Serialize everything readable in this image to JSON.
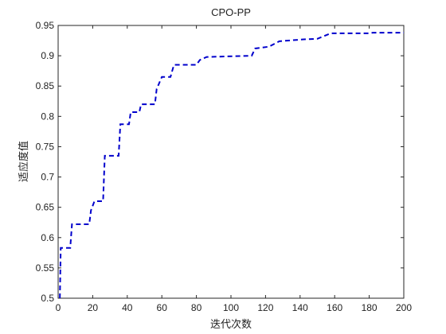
{
  "chart_data": {
    "type": "line",
    "title": "CPO-PP",
    "xlabel": "迭代次数",
    "ylabel": "适应度值",
    "x": [
      1,
      1.5,
      7,
      8,
      18,
      19,
      21,
      26,
      27,
      35,
      36,
      41,
      42,
      47,
      48,
      56,
      57,
      60,
      65,
      67,
      80,
      82,
      86,
      112,
      114,
      122,
      128,
      142,
      150,
      156,
      158,
      180,
      182,
      200
    ],
    "series": [
      {
        "color": "#0000cc",
        "values": [
          0.5,
          0.583,
          0.583,
          0.622,
          0.622,
          0.645,
          0.66,
          0.66,
          0.735,
          0.735,
          0.787,
          0.787,
          0.807,
          0.807,
          0.82,
          0.82,
          0.845,
          0.865,
          0.865,
          0.885,
          0.885,
          0.893,
          0.898,
          0.9,
          0.912,
          0.915,
          0.924,
          0.927,
          0.928,
          0.935,
          0.937,
          0.937,
          0.938,
          0.938
        ]
      }
    ],
    "xlim": [
      0,
      200
    ],
    "xticks": [
      0,
      20,
      40,
      60,
      80,
      100,
      120,
      140,
      160,
      180,
      200
    ],
    "ylim": [
      0.5,
      0.95
    ],
    "yticks": [
      0.5,
      0.55,
      0.6,
      0.65,
      0.7,
      0.75,
      0.8,
      0.85,
      0.9,
      0.95
    ]
  }
}
